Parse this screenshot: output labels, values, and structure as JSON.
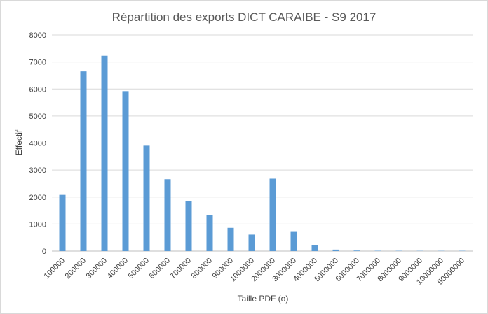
{
  "chart_data": {
    "type": "bar",
    "title": "Répartition des exports DICT CARAIBE - S9 2017",
    "xlabel": "Taille PDF (o)",
    "ylabel": "Effectif",
    "ylim": [
      0,
      8000
    ],
    "yticks": [
      "0",
      "1000",
      "2000",
      "3000",
      "4000",
      "5000",
      "6000",
      "7000",
      "8000"
    ],
    "grid": true,
    "legend": "none",
    "bar_color": "#5b9bd5",
    "categories": [
      "100000",
      "200000",
      "300000",
      "400000",
      "500000",
      "600000",
      "700000",
      "800000",
      "900000",
      "1000000",
      "2000000",
      "3000000",
      "4000000",
      "5000000",
      "6000000",
      "7000000",
      "8000000",
      "9000000",
      "10000000",
      "50000000"
    ],
    "values": [
      2080,
      6650,
      7230,
      5920,
      3900,
      2660,
      1840,
      1340,
      860,
      610,
      2680,
      710,
      210,
      55,
      20,
      12,
      10,
      8,
      8,
      10
    ]
  }
}
